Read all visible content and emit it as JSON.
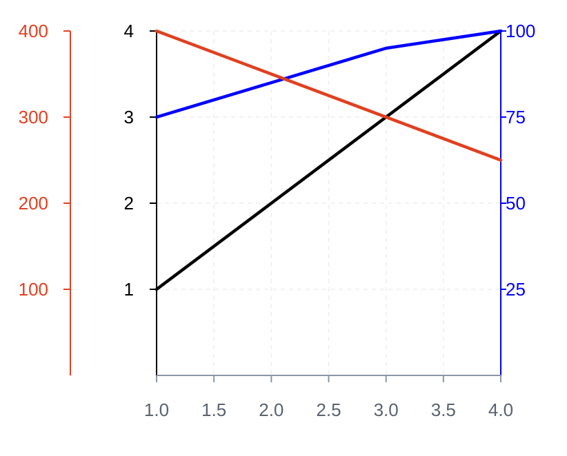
{
  "chart_data": {
    "type": "line",
    "x": [
      1,
      2,
      3,
      4
    ],
    "xlim": [
      1,
      4
    ],
    "x_ticks": [
      "1.0",
      "1.5",
      "2.0",
      "2.5",
      "3.0",
      "3.5",
      "4.0"
    ],
    "x_tick_values": [
      1.0,
      1.5,
      2.0,
      2.5,
      3.0,
      3.5,
      4.0
    ],
    "grid": true,
    "axes": {
      "left": {
        "ylim": [
          0,
          4
        ],
        "ticks": [
          1,
          2,
          3,
          4
        ],
        "color": "#000000"
      },
      "right": {
        "ylim": [
          0,
          100
        ],
        "ticks": [
          25,
          50,
          75,
          100
        ],
        "color": "#0000ff"
      },
      "outer_left": {
        "ylim": [
          0,
          400
        ],
        "ticks": [
          100,
          200,
          300,
          400
        ],
        "color": "#e04020"
      }
    },
    "series": [
      {
        "axis": "left",
        "color": "#000000",
        "values": [
          1,
          2,
          3,
          4
        ]
      },
      {
        "axis": "right",
        "color": "#0000ff",
        "values": [
          75,
          85,
          95,
          100
        ]
      },
      {
        "axis": "outer_left",
        "color": "#e04020",
        "values": [
          400,
          350,
          300,
          250
        ]
      }
    ]
  }
}
